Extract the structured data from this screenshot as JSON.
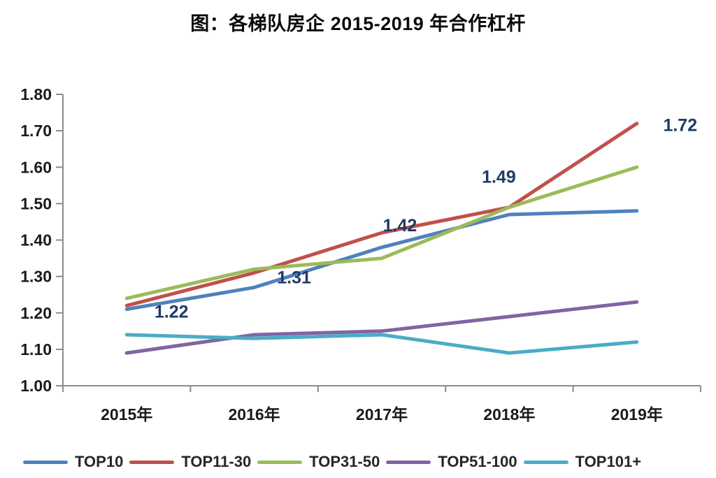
{
  "title": "图：各梯队房企 2015-2019 年合作杠杆",
  "chart_data": {
    "type": "line",
    "categories": [
      "2015年",
      "2016年",
      "2017年",
      "2018年",
      "2019年"
    ],
    "series": [
      {
        "name": "TOP10",
        "color": "#4F81BD",
        "values": [
          1.21,
          1.27,
          1.38,
          1.47,
          1.48
        ]
      },
      {
        "name": "TOP11-30",
        "color": "#C0504D",
        "values": [
          1.22,
          1.31,
          1.42,
          1.49,
          1.72
        ],
        "data_labels": [
          "1.22",
          "1.31",
          "1.42",
          "1.49",
          "1.72"
        ]
      },
      {
        "name": "TOP31-50",
        "color": "#9BBB59",
        "values": [
          1.24,
          1.32,
          1.35,
          1.49,
          1.6
        ]
      },
      {
        "name": "TOP51-100",
        "color": "#8064A2",
        "values": [
          1.09,
          1.14,
          1.15,
          1.19,
          1.23
        ]
      },
      {
        "name": "TOP101+",
        "color": "#4BACC6",
        "values": [
          1.14,
          1.13,
          1.14,
          1.09,
          1.12
        ]
      }
    ],
    "ylim": [
      1.0,
      1.8
    ],
    "y_ticks": [
      "1.00",
      "1.10",
      "1.20",
      "1.30",
      "1.40",
      "1.50",
      "1.60",
      "1.70",
      "1.80"
    ],
    "grid": false,
    "legend_position": "bottom",
    "xlabel": "",
    "ylabel": "",
    "axis_color": "#8C8C8C",
    "tick_label_color": "#1A1A1A",
    "data_label_color": "#1F3B64"
  }
}
